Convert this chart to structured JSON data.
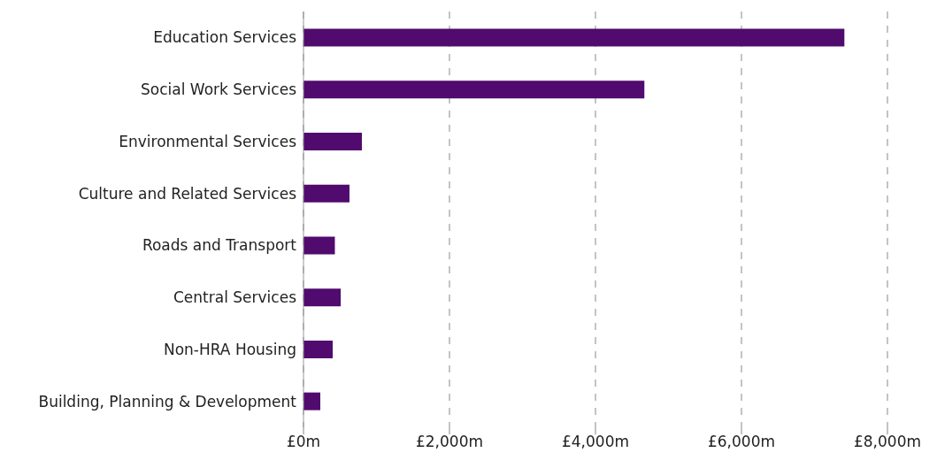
{
  "chart_data": {
    "type": "bar",
    "orientation": "horizontal",
    "categories": [
      "Education Services",
      "Social Work Services",
      "Environmental Services",
      "Culture and Related Services",
      "Roads and Transport",
      "Central Services",
      "Non-HRA Housing",
      "Building, Planning & Development"
    ],
    "values": [
      7410,
      4670,
      800,
      630,
      430,
      510,
      400,
      230
    ],
    "color": "#510a6e",
    "xlim": [
      0,
      8000
    ],
    "xticks": [
      {
        "value": 0,
        "label": "£0m"
      },
      {
        "value": 2000,
        "label": "£2,000m"
      },
      {
        "value": 4000,
        "label": "£4,000m"
      },
      {
        "value": 6000,
        "label": "£6,000m"
      },
      {
        "value": 8000,
        "label": "£8,000m"
      }
    ],
    "grid": "x",
    "legend": false
  }
}
